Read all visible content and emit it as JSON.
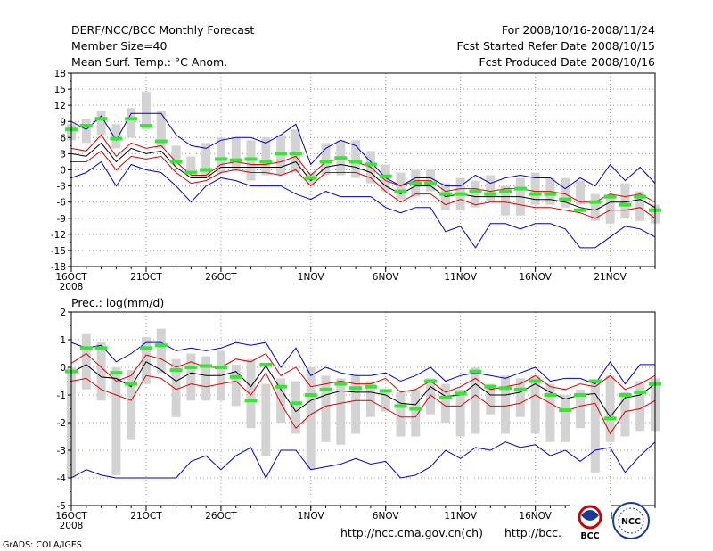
{
  "header": {
    "title": "DERF/NCC/BCC Monthly Forecast",
    "member_size": "Member Size=40",
    "variable": "Mean Surf. Temp.: °C Anom.",
    "period": "For 2008/10/16-2008/11/24",
    "started": "Fcst Started Refer Date 2008/10/15",
    "produced": "Fcst Produced Date 2008/10/16"
  },
  "footer": {
    "grads": "GrADS: COLA/IGES",
    "url1": "http://ncc.cma.gov.cn(ch)",
    "url2": "http://bcc.",
    "logo_bcc_text": "BCC",
    "logo_ncc_text": "NCC"
  },
  "colors": {
    "box": "#d3d3d3",
    "median": "#35e635",
    "envelope": "#0000cc",
    "spread": "#dd0000",
    "mean": "#000000",
    "grid": "#9a9a9a"
  },
  "chart_data": [
    {
      "type": "box",
      "title": "Mean Surf. Temp.: °C Anom.",
      "ylim": [
        -18,
        18
      ],
      "yticks": [
        -18,
        -15,
        -12,
        -9,
        -6,
        -3,
        0,
        3,
        6,
        9,
        12,
        15,
        18
      ],
      "xlim": [
        16,
        55
      ],
      "xtick_positions": [
        16,
        21,
        26,
        32,
        37,
        42,
        47,
        52
      ],
      "xtick_labels": [
        "16OCT",
        "21OCT",
        "26OCT",
        "1NOV",
        "6NOV",
        "11NOV",
        "16NOV",
        "21NOV"
      ],
      "year_label": "2008",
      "days": [
        16,
        17,
        18,
        19,
        20,
        21,
        22,
        23,
        24,
        25,
        26,
        27,
        28,
        29,
        30,
        31,
        32,
        33,
        34,
        35,
        36,
        37,
        38,
        39,
        40,
        41,
        42,
        43,
        44,
        45,
        46,
        47,
        48,
        49,
        50,
        51,
        52,
        53,
        54,
        55
      ],
      "box_low": [
        5.5,
        5,
        6.5,
        4,
        6,
        7.5,
        4,
        1,
        -0.5,
        -1.5,
        -0.5,
        0,
        -2,
        -1,
        -1,
        -0.5,
        -3,
        -1,
        -1,
        -1.5,
        -2.5,
        -4,
        -5.5,
        -5,
        -4,
        -7.5,
        -7.5,
        -7,
        -6,
        -8.5,
        -8.5,
        -6.5,
        -6.5,
        -7,
        -6.5,
        -9.5,
        -10,
        -9,
        -9.5,
        -10
      ],
      "box_high": [
        8.5,
        9.5,
        11,
        8.5,
        11.5,
        14.5,
        11,
        4.5,
        2.5,
        5,
        6,
        6,
        5.5,
        6,
        6.5,
        7.5,
        -0.5,
        5,
        5.5,
        5.5,
        3.5,
        1,
        -0.5,
        0,
        0,
        -2.5,
        -1.5,
        -2,
        -1,
        -3,
        -1.5,
        -0.5,
        -1.5,
        -1.5,
        -2,
        -4.5,
        -4.5,
        -2.5,
        -4,
        -6.5
      ],
      "median": [
        7.5,
        8.2,
        9.5,
        5.8,
        9.5,
        8.2,
        5.3,
        1.5,
        -0.5,
        0,
        2,
        1.8,
        2,
        1.5,
        3,
        3,
        -1.5,
        1.5,
        2.2,
        1.5,
        1,
        -1.2,
        -4,
        -2.5,
        -2.5,
        -4.5,
        -4.5,
        -4,
        -4.5,
        -4,
        -3.5,
        -4.5,
        -4.5,
        -5.5,
        -7.5,
        -6,
        -5,
        -6.5,
        -5,
        -7.5
      ],
      "top": [
        9,
        7.5,
        10,
        5.5,
        10.5,
        10.5,
        10.5,
        6.5,
        4.5,
        4,
        5.5,
        6,
        6,
        5,
        6.5,
        8.5,
        1,
        4,
        5.5,
        4.5,
        1.5,
        -1.5,
        -3,
        -1.5,
        -1.5,
        -3,
        -3,
        -1,
        -2.5,
        -1.5,
        -1,
        -1.5,
        -1.5,
        -3.5,
        -1.5,
        -3,
        1,
        -2,
        0.5,
        -2.5
      ],
      "bottom": [
        -1.5,
        -0.5,
        1.5,
        -3,
        1,
        0,
        -0.5,
        -3,
        -6,
        -3,
        -1.5,
        -2,
        -3,
        -3,
        -3,
        -4.5,
        -5.5,
        -4,
        -5,
        -5,
        -5,
        -7,
        -8,
        -7,
        -7,
        -11.5,
        -10.5,
        -14.5,
        -10,
        -10,
        -11,
        -10,
        -10,
        -11,
        -14.5,
        -14.5,
        -12.5,
        -10.5,
        -11,
        -12.5
      ],
      "upper": [
        4,
        3.5,
        6.5,
        2.5,
        5,
        4,
        4.5,
        1.5,
        -1,
        -1,
        1,
        1.5,
        1,
        1,
        1.5,
        2.5,
        -1,
        1.5,
        2,
        1.5,
        0.5,
        -2,
        -3,
        -2,
        -2,
        -4,
        -3.5,
        -3.5,
        -4,
        -3.5,
        -3.5,
        -4,
        -4,
        -4.5,
        -6,
        -6,
        -4.5,
        -5,
        -4.5,
        -6
      ],
      "mean": [
        3,
        2.5,
        5,
        1.5,
        4,
        3,
        3.5,
        0.5,
        -1.5,
        -1.5,
        0.5,
        0.5,
        0.5,
        0.5,
        0.5,
        1.5,
        -2,
        0.5,
        1,
        0.5,
        -0.5,
        -3,
        -4.5,
        -3,
        -3,
        -5,
        -4.5,
        -5,
        -5,
        -5,
        -5,
        -5.5,
        -5.5,
        -6,
        -7,
        -7.5,
        -6,
        -6,
        -5.5,
        -7
      ],
      "lower": [
        1.5,
        1.5,
        3.5,
        0,
        2.5,
        2,
        2.5,
        -0.5,
        -2.5,
        -2,
        -0.5,
        0,
        -0.5,
        -0.5,
        -1,
        0,
        -3,
        -0.5,
        -0.5,
        -0.5,
        -1.5,
        -4,
        -6,
        -4.5,
        -4.5,
        -6.5,
        -5.5,
        -6.5,
        -6,
        -6,
        -6.5,
        -7,
        -7,
        -7.5,
        -8,
        -9,
        -7.5,
        -7.5,
        -7,
        -9
      ]
    },
    {
      "type": "box",
      "title": "Prec.: log(mm/d)",
      "ylim": [
        -5,
        2
      ],
      "yticks": [
        -5,
        -4,
        -3,
        -2,
        -1,
        0,
        1,
        2
      ],
      "xlim": [
        16,
        55
      ],
      "xtick_positions": [
        16,
        21,
        26,
        32,
        37,
        42,
        47,
        52
      ],
      "xtick_labels": [
        "16OCT",
        "21OCT",
        "26OCT",
        "1NOV",
        "6NOV",
        "11NOV",
        "16NOV",
        "21NOV"
      ],
      "year_label": "2008",
      "days": [
        16,
        17,
        18,
        19,
        20,
        21,
        22,
        23,
        24,
        25,
        26,
        27,
        28,
        29,
        30,
        31,
        32,
        33,
        34,
        35,
        36,
        37,
        38,
        39,
        40,
        41,
        42,
        43,
        44,
        45,
        46,
        47,
        48,
        49,
        50,
        51,
        52,
        53,
        54,
        55
      ],
      "box_low": [
        -4,
        -0.8,
        -1.2,
        -3.9,
        -2.6,
        -0.6,
        -0.2,
        -1.8,
        -1.2,
        -1.2,
        -1.2,
        -1.4,
        -2.2,
        -3.2,
        -2,
        -2.4,
        -3.7,
        -2.7,
        -2.8,
        -2.4,
        -1.8,
        -1.6,
        -2.5,
        -2.5,
        -1.7,
        -2,
        -2.5,
        -2.4,
        -1.7,
        -2.4,
        -1.8,
        -2.4,
        -2.7,
        -2.7,
        -2.2,
        -3.8,
        -2.7,
        -2.5,
        -2.3,
        -2.3
      ],
      "box_high": [
        0,
        1.2,
        0.9,
        0,
        -0.1,
        1.1,
        1.4,
        0.3,
        0.5,
        0.4,
        0.6,
        0.1,
        0.3,
        -0.6,
        -0.4,
        -0.5,
        0,
        -0.3,
        -0.4,
        -0.3,
        -0.5,
        -0.9,
        -0.9,
        -0.8,
        -0.4,
        -0.6,
        -0.8,
        0,
        -0.6,
        -0.3,
        -0.4,
        -0.3,
        -0.6,
        -1,
        -0.8,
        -0.5,
        -0.3,
        -0.9,
        -0.5,
        -0.4
      ],
      "median": [
        -0.15,
        0.7,
        0.7,
        -0.2,
        -0.6,
        0.7,
        0.8,
        -0.1,
        0,
        0.05,
        0,
        -0.35,
        -1.2,
        0.1,
        -0.7,
        -1.3,
        -1,
        -0.8,
        -0.6,
        -0.75,
        -0.7,
        -0.85,
        -1.4,
        -1.5,
        -0.5,
        -1.1,
        -0.95,
        -0.15,
        -0.7,
        -0.75,
        -0.8,
        -0.5,
        -1,
        -1.55,
        -1,
        -0.5,
        -1.85,
        -1,
        -0.9,
        -0.6
      ],
      "top": [
        0.9,
        0.7,
        0.8,
        0.2,
        0.5,
        0.9,
        0.9,
        0.6,
        0.7,
        0.6,
        0.7,
        0.9,
        0.8,
        0.9,
        0,
        0.7,
        -0.3,
        0,
        -0.2,
        -0.3,
        -0.3,
        -0.2,
        -0.5,
        -0.3,
        0,
        -0.5,
        -0.3,
        -0.2,
        -0.3,
        -0.4,
        -0.2,
        0,
        -0.5,
        -0.4,
        -0.4,
        -0.6,
        0.2,
        -0.6,
        0.1,
        0.1
      ],
      "bottom": [
        -4,
        -3.7,
        -3.9,
        -4,
        -4,
        -4,
        -4,
        -4,
        -3.4,
        -3.2,
        -3.7,
        -3.2,
        -2.9,
        -4,
        -3,
        -3,
        -3.7,
        -3.6,
        -3.5,
        -3.3,
        -3.5,
        -3.4,
        -4,
        -3.9,
        -3.6,
        -3,
        -3.3,
        -2.9,
        -3,
        -2.7,
        -2.9,
        -2.8,
        -3.2,
        -3,
        -3.4,
        -3,
        -2.9,
        -3.8,
        -3.2,
        -2.7
      ],
      "upper": [
        0.15,
        0.5,
        0,
        -0.5,
        -0.3,
        0.45,
        0.3,
        0,
        0.2,
        0,
        0,
        0.3,
        0.2,
        0.5,
        -0.3,
        0,
        -0.7,
        -0.6,
        -0.5,
        -0.6,
        -0.6,
        -0.4,
        -0.9,
        -0.8,
        -0.5,
        -0.9,
        -0.7,
        -0.4,
        -0.8,
        -0.7,
        -0.6,
        -0.3,
        -0.7,
        -0.8,
        -0.6,
        -0.7,
        -0.3,
        -0.8,
        -0.6,
        -0.3
      ],
      "mean": [
        -0.2,
        0.1,
        -0.35,
        -0.4,
        -0.7,
        0.2,
        -0.1,
        -0.5,
        -0.2,
        -0.3,
        -0.3,
        -0.15,
        -0.7,
        0.05,
        -0.8,
        -1.6,
        -1.2,
        -1.0,
        -0.85,
        -0.9,
        -0.9,
        -1.0,
        -1.3,
        -1.35,
        -0.7,
        -1.05,
        -1.0,
        -0.6,
        -1.0,
        -1.0,
        -0.9,
        -0.6,
        -0.9,
        -1.15,
        -1.0,
        -0.95,
        -1.8,
        -1.1,
        -1.0,
        -0.6
      ],
      "lower": [
        -0.5,
        -0.4,
        -0.8,
        -1.0,
        -1.2,
        -0.3,
        -0.4,
        -0.8,
        -0.6,
        -0.7,
        -0.6,
        -0.5,
        -1.0,
        -0.2,
        -1.3,
        -2.2,
        -1.7,
        -1.4,
        -1.3,
        -1.2,
        -1.2,
        -1.5,
        -1.8,
        -1.8,
        -1.0,
        -1.4,
        -1.4,
        -1.0,
        -1.4,
        -1.4,
        -1.3,
        -1.0,
        -1.3,
        -1.6,
        -1.4,
        -1.3,
        -2.4,
        -1.6,
        -1.5,
        -1.2
      ]
    }
  ]
}
